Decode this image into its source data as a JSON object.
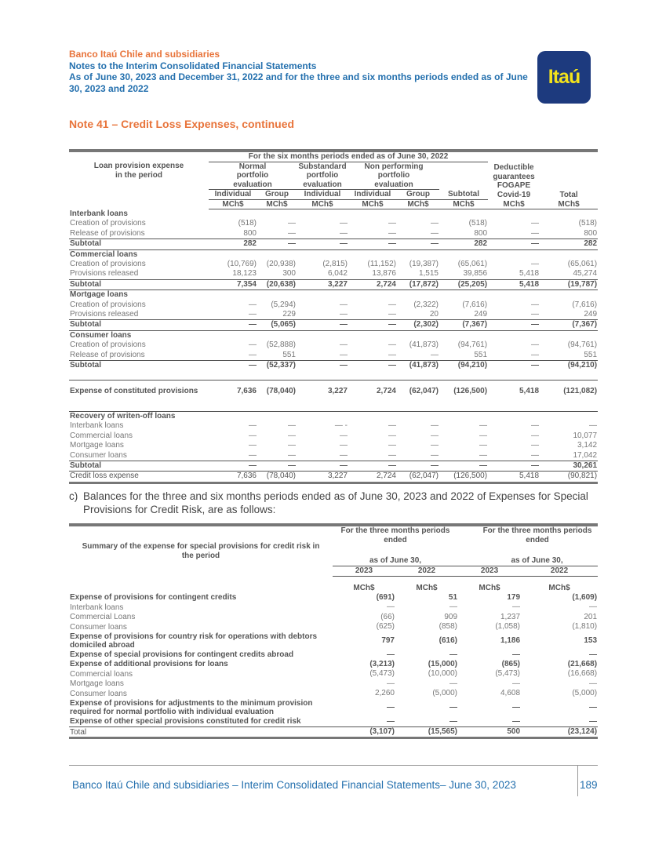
{
  "header": {
    "company": "Banco Itaú Chile and subsidiaries",
    "subtitle": "Notes to the Interim Consolidated Financial Statements",
    "period": "As of June 30, 2023 and December 31, 2022 and for the three and six months periods ended as of June 30, 2023 and 2022",
    "logo_text": "Itaú"
  },
  "note_title": "Note 41 – Credit Loss Expenses, continued",
  "table1": {
    "period_header": "For the six months periods ended as of June 30, 2022",
    "row_label_header": "Loan provision expense in the period",
    "groups": [
      "Normal portfolio evaluation",
      "Substandard portfolio evaluation",
      "Non performing portfolio evaluation"
    ],
    "deductible_header": "Deductible guarantees FOGAPE Covid-19",
    "total_header": "Total",
    "subcols": [
      "Individual",
      "Group",
      "Individual",
      "Individual",
      "Group",
      "Subtotal"
    ],
    "units": [
      "MCh$",
      "MCh$",
      "MCh$",
      "MCh$",
      "MCh$",
      "MCh$",
      "MCh$",
      "MCh$"
    ],
    "rows": [
      {
        "type": "section",
        "label": "Interbank loans"
      },
      {
        "label": "Creation of provisions",
        "v": [
          "(518)",
          "—",
          "—",
          "—",
          "—",
          "(518)",
          "—",
          "(518)"
        ]
      },
      {
        "label": "Release of provisions",
        "v": [
          "800",
          "—",
          "—",
          "—",
          "—",
          "800",
          "—",
          "800"
        ]
      },
      {
        "type": "subtotal",
        "label": "Subtotal",
        "v": [
          "282",
          "—",
          "—",
          "—",
          "—",
          "282",
          "—",
          "282"
        ]
      },
      {
        "type": "section",
        "label": "Commercial loans"
      },
      {
        "label": "Creation of provisions",
        "v": [
          "(10,769)",
          "(20,938)",
          "(2,815)",
          "(11,152)",
          "(19,387)",
          "(65,061)",
          "—",
          "(65,061)"
        ]
      },
      {
        "label": "Provisions released",
        "v": [
          "18,123",
          "300",
          "6,042",
          "13,876",
          "1,515",
          "39,856",
          "5,418",
          "45,274"
        ]
      },
      {
        "type": "subtotal",
        "label": "Subtotal",
        "v": [
          "7,354",
          "(20,638)",
          "3,227",
          "2,724",
          "(17,872)",
          "(25,205)",
          "5,418",
          "(19,787)"
        ]
      },
      {
        "type": "section",
        "label": "Mortgage loans"
      },
      {
        "label": "Creation of provisions",
        "v": [
          "—",
          "(5,294)",
          "—",
          "—",
          "(2,322)",
          "(7,616)",
          "—",
          "(7,616)"
        ]
      },
      {
        "label": "Provisions released",
        "v": [
          "—",
          "229",
          "—",
          "—",
          "20",
          "249",
          "—",
          "249"
        ]
      },
      {
        "type": "subtotal",
        "label": "Subtotal",
        "v": [
          "—",
          "(5,065)",
          "—",
          "—",
          "(2,302)",
          "(7,367)",
          "—",
          "(7,367)"
        ]
      },
      {
        "type": "section",
        "label": "Consumer loans"
      },
      {
        "label": "Creation of provisions",
        "v": [
          "—",
          "(52,888)",
          "—",
          "—",
          "(41,873)",
          "(94,761)",
          "—",
          "(94,761)"
        ]
      },
      {
        "label": "Release of provisions",
        "v": [
          "—",
          "551",
          "—",
          "—",
          "—",
          "551",
          "—",
          "551"
        ]
      },
      {
        "type": "subtotal",
        "label": "Subtotal",
        "v": [
          "—",
          "(52,337)",
          "—",
          "—",
          "(41,873)",
          "(94,210)",
          "—",
          "(94,210)"
        ]
      },
      {
        "type": "spacer"
      },
      {
        "type": "expense",
        "label": "Expense of constituted provisions",
        "v": [
          "7,636",
          "(78,040)",
          "3,227",
          "2,724",
          "(62,047)",
          "(126,500)",
          "5,418",
          "(121,082)"
        ]
      },
      {
        "type": "spacer"
      },
      {
        "type": "section",
        "label": "Recovery of writen-off loans"
      },
      {
        "label": "Interbank loans",
        "v": [
          "—",
          "—",
          "— -",
          "—",
          "—",
          "—",
          "—",
          "—"
        ]
      },
      {
        "label": "Commercial loans",
        "v": [
          "—",
          "—",
          "—",
          "—",
          "—",
          "—",
          "—",
          "10,077"
        ]
      },
      {
        "label": "Mortgage loans",
        "v": [
          "—",
          "—",
          "—",
          "—",
          "—",
          "—",
          "—",
          "3,142"
        ]
      },
      {
        "label": "Consumer loans",
        "v": [
          "—",
          "—",
          "—",
          "—",
          "—",
          "—",
          "—",
          "17,042"
        ]
      },
      {
        "type": "subtotal",
        "label": "Subtotal",
        "v": [
          "—",
          "—",
          "—",
          "—",
          "—",
          "—",
          "—",
          "30,261"
        ]
      },
      {
        "type": "total",
        "label": "Credit loss expense",
        "v": [
          "7,636",
          "(78,040)",
          "3,227",
          "2,724",
          "(62,047)",
          "(126,500)",
          "5,418",
          "(90,821)"
        ]
      }
    ]
  },
  "paragraph": {
    "label": "c)",
    "text": "Balances for the three and six months periods ended as of June 30, 2023 and 2022 of Expenses for Special Provisions for Credit Risk, are as follows:"
  },
  "table2": {
    "row_label_header": "Summary of the expense for special provisions for credit risk in the period",
    "period_headers": [
      "For the three months periods ended",
      "For the three months periods ended"
    ],
    "as_of": [
      "as of June 30,",
      "as of June 30,"
    ],
    "years": [
      "2023",
      "2022",
      "2023",
      "2022"
    ],
    "units": [
      "MCh$",
      "MCh$",
      "MCh$",
      "MCh$"
    ],
    "rows": [
      {
        "bold": true,
        "label": "Expense of provisions for contingent credits",
        "v": [
          "(691)",
          "51",
          "179",
          "(1,609)"
        ]
      },
      {
        "label": "Interbank loans",
        "v": [
          "—",
          "—",
          "—",
          "—"
        ]
      },
      {
        "label": "Commercial Loans",
        "v": [
          "(66)",
          "909",
          "1,237",
          "201"
        ]
      },
      {
        "label": "Consumer loans",
        "v": [
          "(625)",
          "(858)",
          "(1,058)",
          "(1,810)"
        ]
      },
      {
        "bold": true,
        "label": "Expense of provisions for country risk for operations with debtors domiciled abroad",
        "v": [
          "797",
          "(616)",
          "1,186",
          "153"
        ]
      },
      {
        "bold": true,
        "label": "Expense of special provisions for contingent credits abroad",
        "v": [
          "—",
          "—",
          "—",
          "—"
        ]
      },
      {
        "bold": true,
        "label": "Expense of additional provisions for loans",
        "v": [
          "(3,213)",
          "(15,000)",
          "(865)",
          "(21,668)"
        ]
      },
      {
        "label": "Commercial loans",
        "v": [
          "(5,473)",
          "(10,000)",
          "(5,473)",
          "(16,668)"
        ]
      },
      {
        "label": "Mortgage loans",
        "v": [
          "—",
          "—",
          "—",
          "—"
        ]
      },
      {
        "label": "Consumer loans",
        "v": [
          "2,260",
          "(5,000)",
          "4,608",
          "(5,000)"
        ]
      },
      {
        "bold": true,
        "label": "Expense of provisions for adjustments to the minimum provision required for normal portfolio with individual evaluation",
        "v": [
          "—",
          "—",
          "—",
          "—"
        ]
      },
      {
        "bold": true,
        "label": "Expense of other special provisions constituted for credit risk",
        "v": [
          "—",
          "—",
          "—",
          "—"
        ]
      },
      {
        "type": "total",
        "label": "Total",
        "v": [
          "(3,107)",
          "(15,565)",
          "500",
          "(23,124)"
        ]
      }
    ]
  },
  "footer": {
    "text": "Banco Itaú Chile and subsidiaries – Interim Consolidated Financial Statements– June 30, 2023",
    "page": "189"
  }
}
